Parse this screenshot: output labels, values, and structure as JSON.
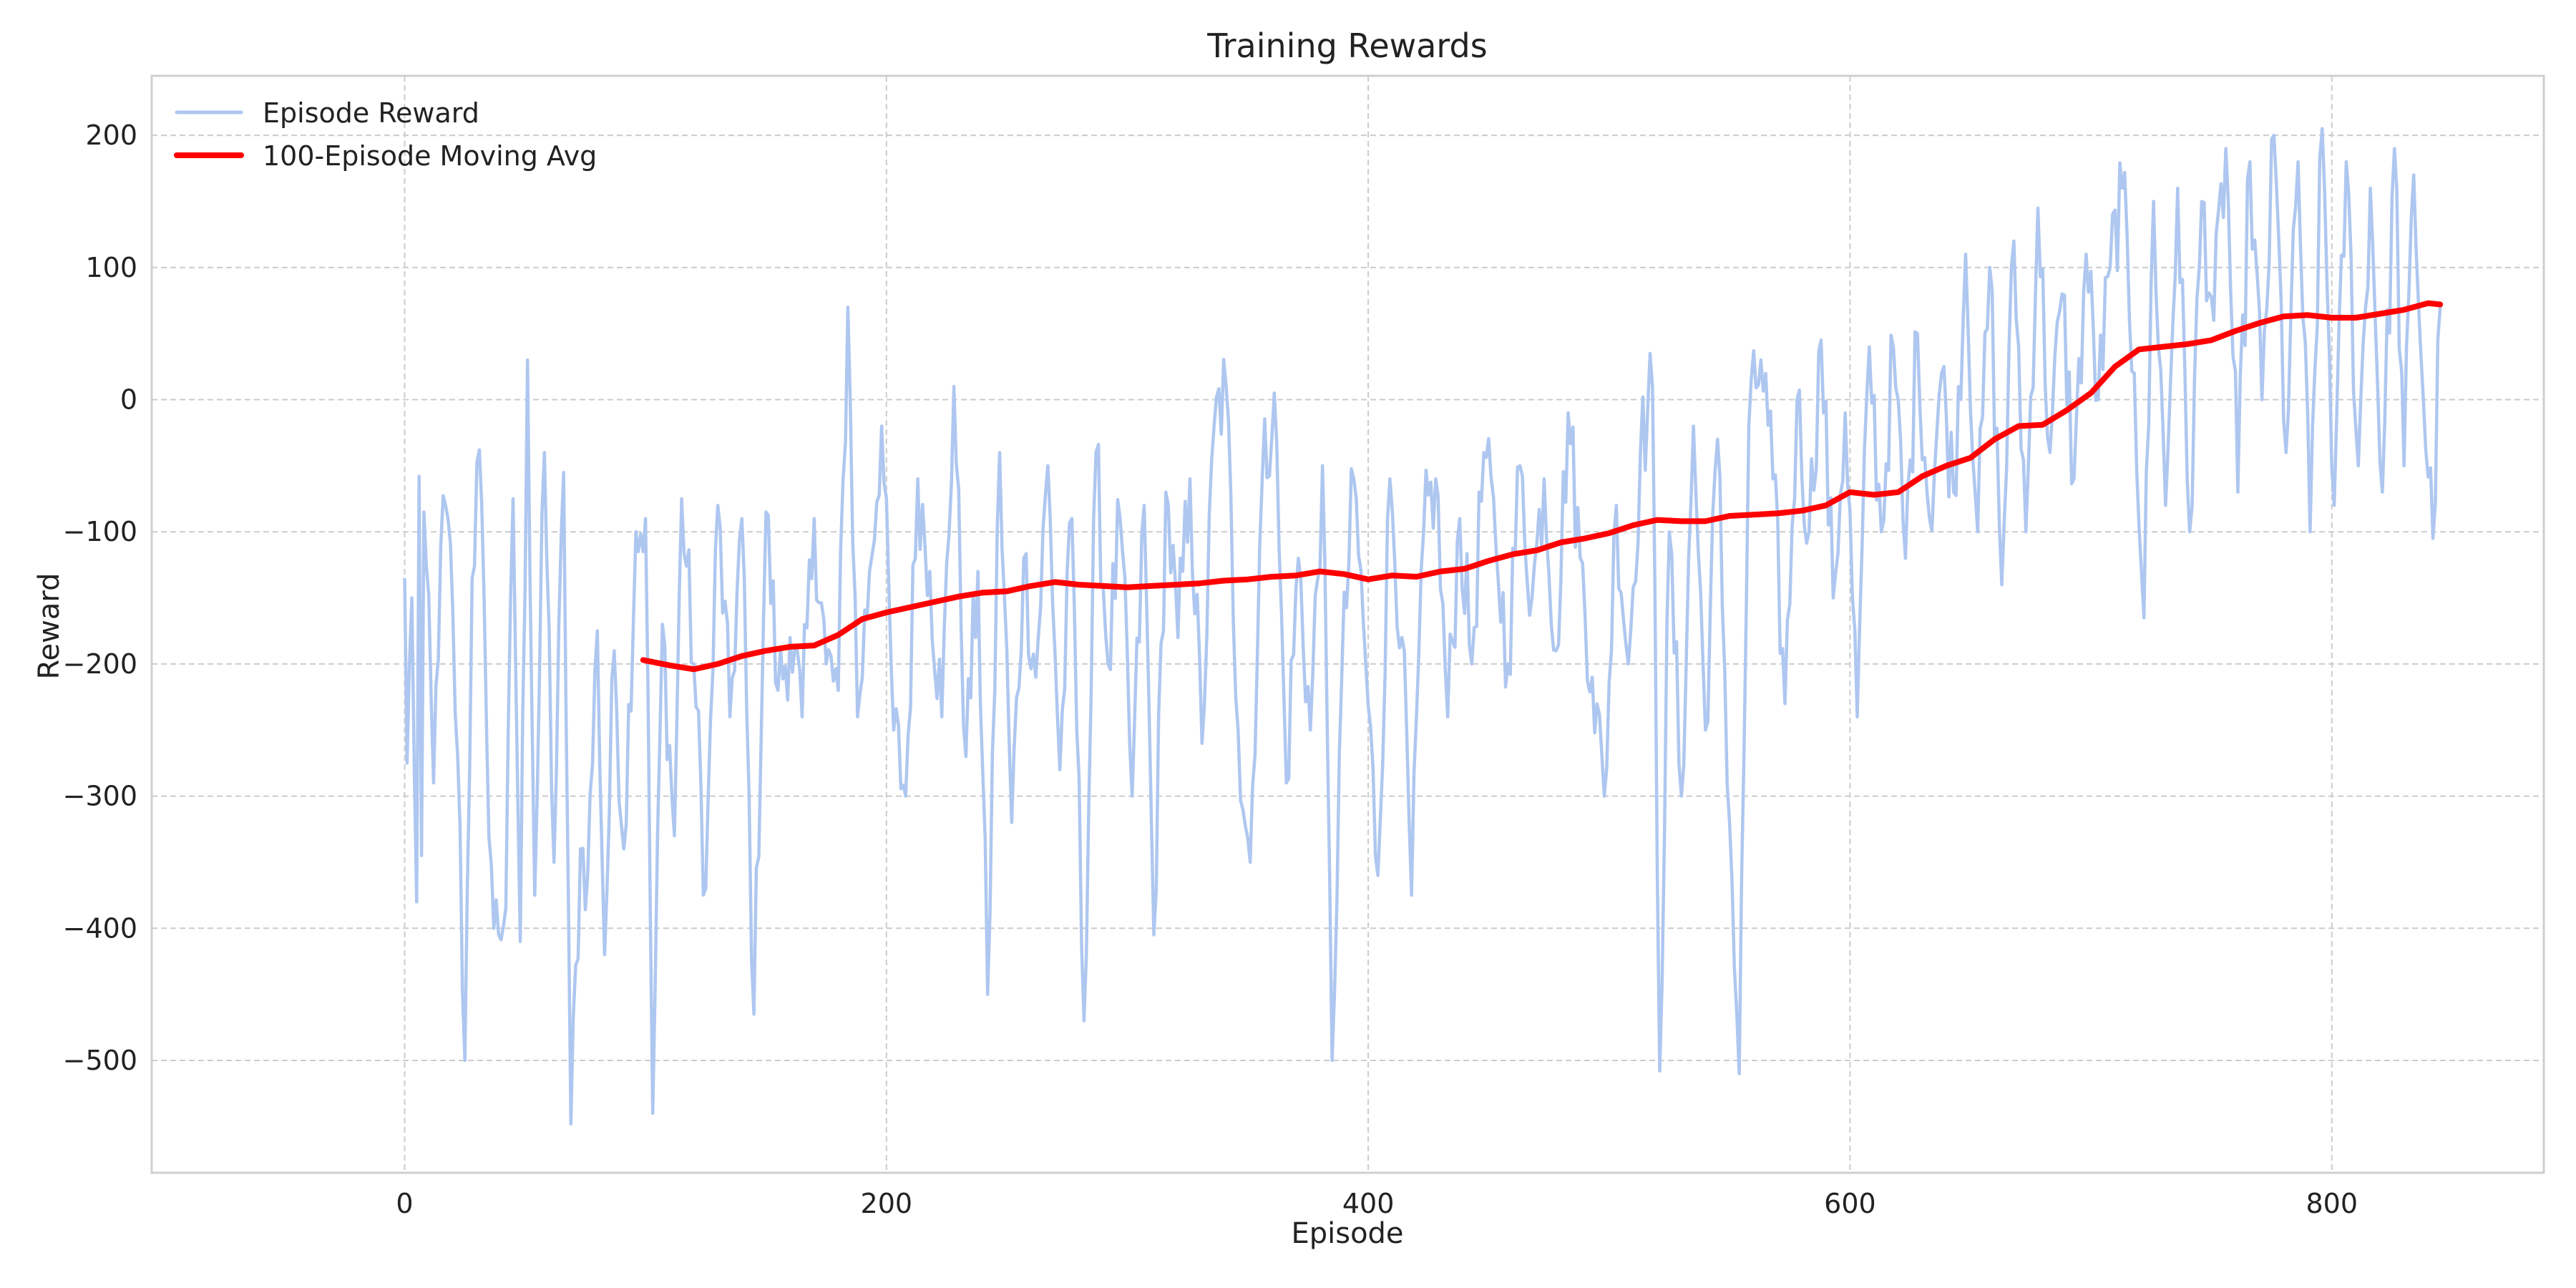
{
  "chart_data": {
    "type": "line",
    "title": "Training Rewards",
    "xlabel": "Episode",
    "ylabel": "Reward",
    "xlim": [
      -105,
      888
    ],
    "ylim": [
      -585,
      245
    ],
    "xticks": [
      0,
      200,
      400,
      600,
      800
    ],
    "yticks": [
      200,
      100,
      0,
      -100,
      -200,
      -300,
      -400,
      -500
    ],
    "grid": true,
    "legend_position": "top-left",
    "series": [
      {
        "name": "Episode Reward",
        "color": "#aec7f0",
        "style": "raw noisy per-episode reward",
        "x_range": [
          0,
          845
        ],
        "anchors": [
          [
            0,
            -135
          ],
          [
            1,
            -275
          ],
          [
            3,
            -150
          ],
          [
            5,
            -380
          ],
          [
            6,
            -58
          ],
          [
            7,
            -345
          ],
          [
            8,
            -85
          ],
          [
            12,
            -290
          ],
          [
            15,
            -110
          ],
          [
            18,
            -90
          ],
          [
            22,
            -270
          ],
          [
            25,
            -500
          ],
          [
            28,
            -135
          ],
          [
            31,
            -38
          ],
          [
            34,
            -250
          ],
          [
            37,
            -400
          ],
          [
            42,
            -385
          ],
          [
            45,
            -75
          ],
          [
            48,
            -410
          ],
          [
            51,
            30
          ],
          [
            54,
            -375
          ],
          [
            58,
            -40
          ],
          [
            62,
            -350
          ],
          [
            66,
            -55
          ],
          [
            69,
            -548
          ],
          [
            73,
            -340
          ],
          [
            76,
            -360
          ],
          [
            80,
            -175
          ],
          [
            83,
            -420
          ],
          [
            87,
            -190
          ],
          [
            91,
            -340
          ],
          [
            96,
            -100
          ],
          [
            100,
            -90
          ],
          [
            103,
            -540
          ],
          [
            107,
            -170
          ],
          [
            112,
            -330
          ],
          [
            115,
            -75
          ],
          [
            120,
            -200
          ],
          [
            125,
            -370
          ],
          [
            130,
            -80
          ],
          [
            135,
            -240
          ],
          [
            140,
            -90
          ],
          [
            145,
            -465
          ],
          [
            150,
            -85
          ],
          [
            155,
            -220
          ],
          [
            160,
            -180
          ],
          [
            165,
            -240
          ],
          [
            170,
            -90
          ],
          [
            175,
            -200
          ],
          [
            180,
            -220
          ],
          [
            184,
            70
          ],
          [
            188,
            -240
          ],
          [
            193,
            -130
          ],
          [
            198,
            -20
          ],
          [
            203,
            -250
          ],
          [
            208,
            -300
          ],
          [
            213,
            -60
          ],
          [
            218,
            -130
          ],
          [
            223,
            -240
          ],
          [
            228,
            10
          ],
          [
            233,
            -270
          ],
          [
            238,
            -130
          ],
          [
            242,
            -450
          ],
          [
            247,
            -40
          ],
          [
            252,
            -320
          ],
          [
            257,
            -120
          ],
          [
            262,
            -210
          ],
          [
            267,
            -50
          ],
          [
            272,
            -280
          ],
          [
            277,
            -90
          ],
          [
            282,
            -470
          ],
          [
            287,
            -40
          ],
          [
            292,
            -200
          ],
          [
            297,
            -90
          ],
          [
            302,
            -300
          ],
          [
            307,
            -80
          ],
          [
            311,
            -405
          ],
          [
            316,
            -70
          ],
          [
            321,
            -180
          ],
          [
            326,
            -60
          ],
          [
            331,
            -260
          ],
          [
            336,
            -20
          ],
          [
            341,
            10
          ],
          [
            346,
            -250
          ],
          [
            351,
            -350
          ],
          [
            356,
            -60
          ],
          [
            361,
            5
          ],
          [
            366,
            -290
          ],
          [
            371,
            -120
          ],
          [
            376,
            -250
          ],
          [
            381,
            -50
          ],
          [
            385,
            -500
          ],
          [
            389,
            -210
          ],
          [
            394,
            -60
          ],
          [
            399,
            -200
          ],
          [
            404,
            -360
          ],
          [
            409,
            -60
          ],
          [
            414,
            -180
          ],
          [
            418,
            -375
          ],
          [
            423,
            -100
          ],
          [
            428,
            -60
          ],
          [
            433,
            -240
          ],
          [
            438,
            -90
          ],
          [
            443,
            -200
          ],
          [
            448,
            -40
          ],
          [
            453,
            -110
          ],
          [
            458,
            -200
          ],
          [
            463,
            -50
          ],
          [
            468,
            -150
          ],
          [
            473,
            -60
          ],
          [
            478,
            -190
          ],
          [
            483,
            -10
          ],
          [
            488,
            -120
          ],
          [
            493,
            -210
          ],
          [
            498,
            -300
          ],
          [
            503,
            -80
          ],
          [
            508,
            -200
          ],
          [
            513,
            -40
          ],
          [
            518,
            10
          ],
          [
            521,
            -508
          ],
          [
            525,
            -100
          ],
          [
            530,
            -300
          ],
          [
            535,
            -20
          ],
          [
            540,
            -250
          ],
          [
            545,
            -30
          ],
          [
            550,
            -320
          ],
          [
            554,
            -510
          ],
          [
            558,
            -20
          ],
          [
            563,
            30
          ],
          [
            568,
            -60
          ],
          [
            573,
            -230
          ],
          [
            578,
            0
          ],
          [
            583,
            -100
          ],
          [
            588,
            45
          ],
          [
            593,
            -150
          ],
          [
            598,
            -10
          ],
          [
            603,
            -240
          ],
          [
            608,
            40
          ],
          [
            613,
            -100
          ],
          [
            618,
            40
          ],
          [
            623,
            -120
          ],
          [
            628,
            50
          ],
          [
            633,
            -90
          ],
          [
            638,
            20
          ],
          [
            643,
            -70
          ],
          [
            648,
            110
          ],
          [
            653,
            -100
          ],
          [
            658,
            100
          ],
          [
            663,
            -140
          ],
          [
            668,
            120
          ],
          [
            673,
            -100
          ],
          [
            678,
            145
          ],
          [
            683,
            -40
          ],
          [
            688,
            80
          ],
          [
            693,
            -60
          ],
          [
            698,
            110
          ],
          [
            703,
            0
          ],
          [
            708,
            100
          ],
          [
            713,
            160
          ],
          [
            718,
            20
          ],
          [
            722,
            -165
          ],
          [
            726,
            150
          ],
          [
            731,
            -80
          ],
          [
            736,
            160
          ],
          [
            741,
            -100
          ],
          [
            746,
            150
          ],
          [
            751,
            60
          ],
          [
            756,
            190
          ],
          [
            761,
            -70
          ],
          [
            766,
            180
          ],
          [
            771,
            0
          ],
          [
            776,
            200
          ],
          [
            781,
            -40
          ],
          [
            786,
            180
          ],
          [
            791,
            -100
          ],
          [
            796,
            205
          ],
          [
            801,
            -80
          ],
          [
            806,
            180
          ],
          [
            811,
            -50
          ],
          [
            816,
            160
          ],
          [
            821,
            -70
          ],
          [
            826,
            190
          ],
          [
            830,
            -50
          ],
          [
            834,
            170
          ],
          [
            838,
            0
          ],
          [
            842,
            -105
          ],
          [
            845,
            70
          ]
        ]
      },
      {
        "name": "100-Episode Moving Avg",
        "color": "#ff0000",
        "x": [
          99,
          110,
          120,
          130,
          140,
          150,
          160,
          170,
          180,
          190,
          200,
          210,
          220,
          230,
          240,
          250,
          260,
          270,
          280,
          290,
          300,
          310,
          320,
          330,
          340,
          350,
          360,
          370,
          380,
          390,
          400,
          410,
          420,
          430,
          440,
          450,
          460,
          470,
          480,
          490,
          500,
          510,
          520,
          530,
          540,
          550,
          560,
          570,
          580,
          590,
          600,
          610,
          620,
          630,
          640,
          650,
          660,
          670,
          680,
          690,
          700,
          710,
          720,
          730,
          740,
          750,
          760,
          770,
          780,
          790,
          800,
          810,
          820,
          830,
          840,
          845
        ],
        "values": [
          -197,
          -201,
          -204,
          -200,
          -194,
          -190,
          -187,
          -186,
          -178,
          -166,
          -161,
          -157,
          -153,
          -149,
          -146,
          -145,
          -141,
          -138,
          -140,
          -141,
          -142,
          -141,
          -140,
          -139,
          -137,
          -136,
          -134,
          -133,
          -130,
          -132,
          -136,
          -133,
          -134,
          -130,
          -128,
          -122,
          -117,
          -114,
          -108,
          -105,
          -101,
          -95,
          -91,
          -92,
          -92,
          -88,
          -87,
          -86,
          -84,
          -80,
          -70,
          -72,
          -70,
          -58,
          -50,
          -44,
          -30,
          -20,
          -19,
          -8,
          5,
          25,
          38,
          40,
          42,
          45,
          52,
          58,
          63,
          64,
          62,
          62,
          65,
          68,
          73,
          72
        ]
      }
    ]
  }
}
